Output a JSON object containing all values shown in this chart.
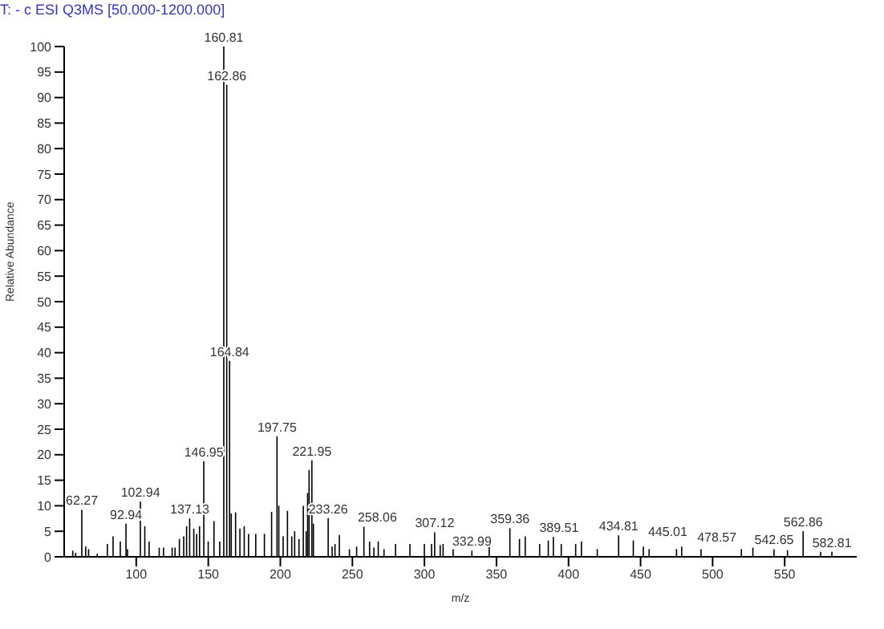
{
  "chart_data": {
    "type": "bar",
    "title": "T: - c ESI Q3MS [50.000-1200.000]",
    "xlabel": "m/z",
    "ylabel": "Relative Abundance",
    "color": "#000000",
    "x": [
      56,
      58,
      62.27,
      65,
      67,
      73,
      80,
      84,
      89,
      92.94,
      94,
      102.94,
      106,
      109,
      116,
      119,
      125,
      127,
      130,
      133,
      135,
      137.13,
      140,
      142,
      144,
      146.95,
      150,
      154,
      158,
      160.81,
      162.86,
      164.84,
      166,
      169,
      172,
      175,
      178,
      183,
      189,
      194,
      197.75,
      199,
      202,
      205,
      208,
      210,
      213,
      216,
      218,
      219,
      220,
      221.95,
      223,
      233.26,
      236,
      238,
      241,
      248,
      253,
      258.06,
      262,
      265,
      268,
      272,
      280,
      290,
      300,
      305,
      307.12,
      311,
      313,
      320,
      332.99,
      345,
      359.36,
      366,
      370,
      380,
      386,
      389.51,
      395,
      405,
      409,
      420,
      434.81,
      445.01,
      452,
      456,
      475,
      478.57,
      492,
      520,
      528,
      542.65,
      552,
      562.86,
      575,
      582.81
    ],
    "values": [
      1.2,
      0.8,
      9.2,
      2,
      1.5,
      0.6,
      2.5,
      4,
      3,
      6.5,
      1.5,
      10.8,
      6,
      3,
      1.8,
      1.8,
      1.8,
      1.8,
      3.5,
      4,
      6,
      7.5,
      5.5,
      4.5,
      6,
      18.7,
      3,
      7,
      3,
      100,
      92.5,
      38.4,
      8.5,
      8.7,
      5.5,
      6,
      4.5,
      4.5,
      4.5,
      8.8,
      23.6,
      10,
      4,
      9,
      4,
      5,
      3.5,
      10,
      5,
      12.5,
      17,
      18.9,
      6.5,
      7.6,
      2,
      2.5,
      4.3,
      1.5,
      2,
      5.9,
      3,
      1.8,
      3,
      1.5,
      2.5,
      2.5,
      2.5,
      2.5,
      4.8,
      2.3,
      2.5,
      1.5,
      1.2,
      2.2,
      5.6,
      3.5,
      4,
      2.5,
      3.2,
      3.9,
      2.5,
      2.5,
      3,
      1.5,
      4.2,
      3.2,
      2,
      1.5,
      1.5,
      2,
      1.5,
      1.5,
      1.8,
      1.5,
      1.3,
      5,
      1,
      1
    ],
    "annotations": [
      {
        "text": "62.27",
        "x": 62.27,
        "y": 9.2
      },
      {
        "text": "92.94",
        "x": 92.94,
        "y": 6.5
      },
      {
        "text": "102.94",
        "x": 102.94,
        "y": 10.8
      },
      {
        "text": "137.13",
        "x": 137.13,
        "y": 7.5
      },
      {
        "text": "146.95",
        "x": 146.95,
        "y": 18.7
      },
      {
        "text": "160.81",
        "x": 160.81,
        "y": 100
      },
      {
        "text": "162.86",
        "x": 162.86,
        "y": 92.5
      },
      {
        "text": "164.84",
        "x": 164.84,
        "y": 38.4
      },
      {
        "text": "197.75",
        "x": 197.75,
        "y": 23.6
      },
      {
        "text": "221.95",
        "x": 221.95,
        "y": 18.9
      },
      {
        "text": "233.26",
        "x": 233.26,
        "y": 7.6
      },
      {
        "text": "258.06",
        "x": 258.06,
        "y": 5.9
      },
      {
        "text": "307.12",
        "x": 307.12,
        "y": 4.8
      },
      {
        "text": "332.99",
        "x": 332.99,
        "y": 1.2
      },
      {
        "text": "359.36",
        "x": 359.36,
        "y": 5.6
      },
      {
        "text": "389.51",
        "x": 389.51,
        "y": 3.9
      },
      {
        "text": "434.81",
        "x": 434.81,
        "y": 4.2
      },
      {
        "text": "445.01",
        "x": 445.01,
        "y": 3.2
      },
      {
        "text": "478.57",
        "x": 478.57,
        "y": 2
      },
      {
        "text": "542.65",
        "x": 542.65,
        "y": 1.5
      },
      {
        "text": "562.86",
        "x": 562.86,
        "y": 5
      },
      {
        "text": "582.81",
        "x": 582.81,
        "y": 1
      }
    ],
    "xlim": [
      50,
      600
    ],
    "xticks": [
      100,
      150,
      200,
      250,
      300,
      350,
      400,
      450,
      500,
      550
    ],
    "ylim": [
      0,
      100
    ],
    "yticks": [
      0,
      5,
      10,
      15,
      20,
      25,
      30,
      35,
      40,
      45,
      50,
      55,
      60,
      65,
      70,
      75,
      80,
      85,
      90,
      95,
      100
    ],
    "grid": false
  }
}
